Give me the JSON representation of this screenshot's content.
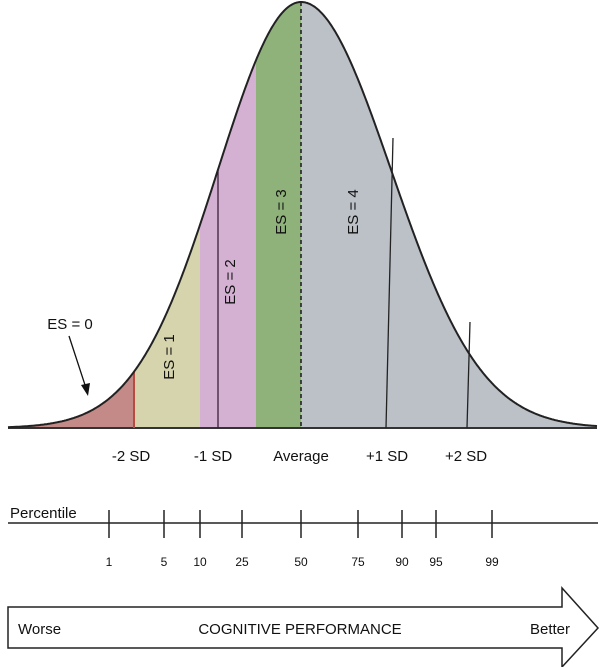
{
  "colors": {
    "es0": "#c48a87",
    "es1": "#d6d4ad",
    "es2": "#d4b1d2",
    "es3": "#8fb27b",
    "es4": "#bcc1c8",
    "es0_edge": "#b84a40",
    "es2_edge": "#8c4c8e",
    "curve": "#222222"
  },
  "regions": [
    {
      "id": "es0",
      "label": "ES = 0"
    },
    {
      "id": "es1",
      "label": "ES = 1"
    },
    {
      "id": "es2",
      "label": "ES = 2"
    },
    {
      "id": "es3",
      "label": "ES = 3"
    },
    {
      "id": "es4",
      "label": "ES = 4"
    }
  ],
  "sd_labels": [
    "-2 SD",
    "-1 SD",
    "Average",
    "+1 SD",
    "+2 SD"
  ],
  "percentile": {
    "title": "Percentile",
    "ticks": [
      "1",
      "5",
      "10",
      "25",
      "50",
      "75",
      "90",
      "95",
      "99"
    ]
  },
  "performance_arrow": {
    "left": "Worse",
    "center": "COGNITIVE PERFORMANCE",
    "right": "Better"
  }
}
